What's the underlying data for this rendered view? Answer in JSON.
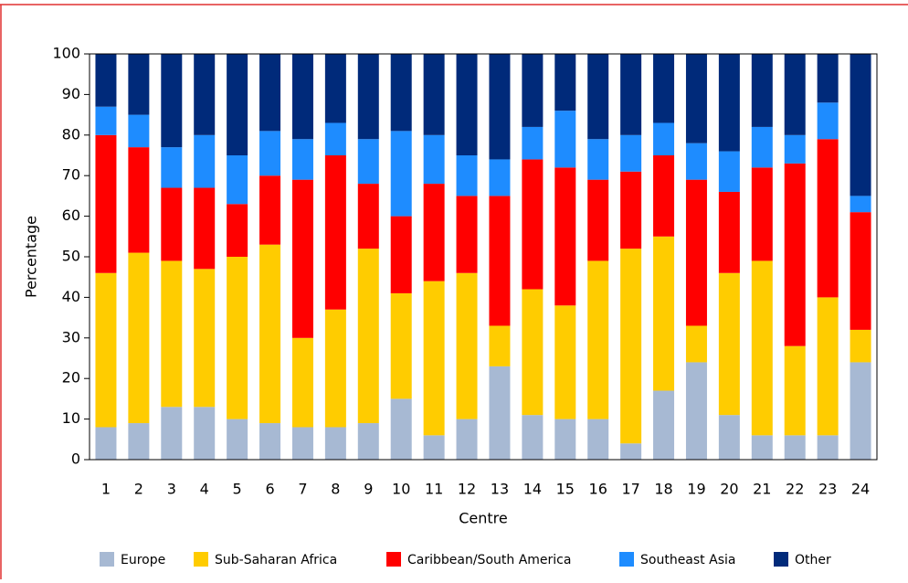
{
  "chart_data": {
    "type": "stacked-bar",
    "x_label": "Centre",
    "y_label": "Percentage",
    "categories": [
      "1",
      "2",
      "3",
      "4",
      "5",
      "6",
      "7",
      "8",
      "9",
      "10",
      "11",
      "12",
      "13",
      "14",
      "15",
      "16",
      "17",
      "18",
      "19",
      "20",
      "21",
      "22",
      "23",
      "24"
    ],
    "series": [
      {
        "name": "Europe",
        "color": "#a7b9d3",
        "values": [
          8,
          9,
          13,
          13,
          10,
          9,
          8,
          8,
          9,
          15,
          6,
          10,
          23,
          11,
          10,
          10,
          4,
          17,
          24,
          11,
          6,
          6,
          6,
          24
        ]
      },
      {
        "name": "Sub-Saharan Africa",
        "color": "#ffcc00",
        "values": [
          38,
          42,
          36,
          34,
          40,
          44,
          22,
          29,
          43,
          26,
          38,
          36,
          10,
          31,
          28,
          39,
          48,
          38,
          9,
          35,
          43,
          22,
          34,
          8
        ]
      },
      {
        "name": "Caribbean/South America",
        "color": "#ff0000",
        "values": [
          34,
          26,
          18,
          20,
          13,
          17,
          39,
          38,
          16,
          19,
          24,
          19,
          32,
          32,
          34,
          20,
          19,
          20,
          36,
          20,
          23,
          45,
          39,
          29
        ]
      },
      {
        "name": "Southeast Asia",
        "color": "#1e8cff",
        "values": [
          7,
          8,
          10,
          13,
          12,
          11,
          10,
          8,
          11,
          21,
          12,
          10,
          9,
          8,
          14,
          10,
          9,
          8,
          9,
          10,
          10,
          7,
          9,
          4
        ]
      },
      {
        "name": "Other",
        "color": "#002a7a",
        "values": [
          13,
          15,
          23,
          20,
          25,
          19,
          21,
          17,
          21,
          19,
          20,
          25,
          26,
          18,
          14,
          21,
          20,
          17,
          22,
          24,
          18,
          20,
          12,
          35
        ]
      }
    ],
    "ylim": [
      0,
      100
    ],
    "yticks": [
      0,
      10,
      20,
      30,
      40,
      50,
      60,
      70,
      80,
      90,
      100
    ],
    "grid": false,
    "legend": "bottom"
  }
}
